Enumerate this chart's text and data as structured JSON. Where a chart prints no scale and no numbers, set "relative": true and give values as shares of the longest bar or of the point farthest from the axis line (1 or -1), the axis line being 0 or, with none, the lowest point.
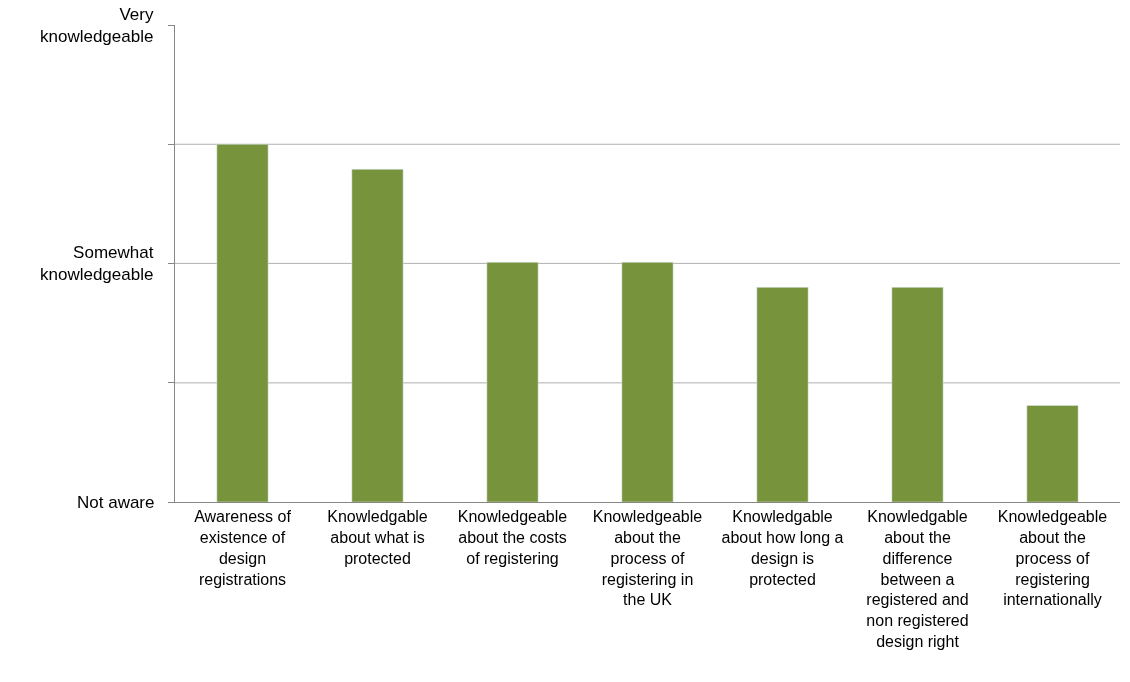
{
  "chart_data": {
    "type": "bar",
    "categories": [
      "Awareness of existence of design registrations",
      "Knowledgable about what is protected",
      "Knowledgeable about the costs of registering",
      "Knowledgeable about the process of registering in the UK",
      "Knowledgable about how long a design is protected",
      "Knowledgable about the difference between a registered and non registered design right",
      "Knowledgeable about the process of registering internationally"
    ],
    "values": [
      1.0,
      0.93,
      0.67,
      0.67,
      0.6,
      0.6,
      0.27
    ],
    "relative": true,
    "color": "#77933c",
    "annotations": [
      "Not aware",
      "Somewhat knowledgeable",
      "Very knowledgeable"
    ],
    "ref_lines": [
      {
        "axis": "y",
        "value": 0.333,
        "color": "#b0b0b0"
      },
      {
        "axis": "y",
        "value": 0.667,
        "color": "#b0b0b0"
      },
      {
        "axis": "y",
        "value": 1.0,
        "color": "#b0b0b0"
      }
    ]
  }
}
